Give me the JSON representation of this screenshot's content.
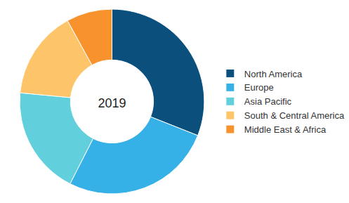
{
  "chart_data": {
    "type": "pie",
    "title": "2019",
    "categories": [
      "North America",
      "Europe",
      "Asia Pacific",
      "South & Central America",
      "Middle East & Africa"
    ],
    "values": [
      31,
      26.5,
      19,
      15.5,
      8
    ],
    "colors": [
      "#0b4f7d",
      "#35b1e8",
      "#62d0dc",
      "#fdc46a",
      "#f7922d"
    ],
    "legend": "right",
    "data_labels": false
  }
}
